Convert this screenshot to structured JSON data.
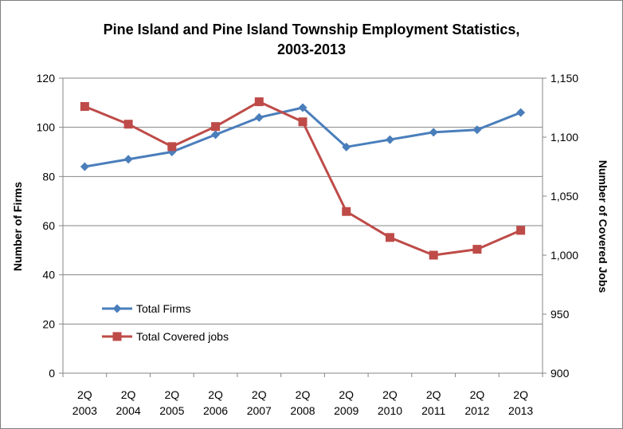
{
  "chart_data": {
    "type": "line",
    "title": "Pine Island and Pine Island Township Employment Statistics,",
    "title_line2": "2003-2013",
    "ylabel": "Number of Firms",
    "y2label": "Number of Covered Jobs",
    "categories": [
      {
        "top": "2Q",
        "bottom": "2003"
      },
      {
        "top": "2Q",
        "bottom": "2004"
      },
      {
        "top": "2Q",
        "bottom": "2005"
      },
      {
        "top": "2Q",
        "bottom": "2006"
      },
      {
        "top": "2Q",
        "bottom": "2007"
      },
      {
        "top": "2Q",
        "bottom": "2008"
      },
      {
        "top": "2Q",
        "bottom": "2009"
      },
      {
        "top": "2Q",
        "bottom": "2010"
      },
      {
        "top": "2Q",
        "bottom": "2011"
      },
      {
        "top": "2Q",
        "bottom": "2012"
      },
      {
        "top": "2Q",
        "bottom": "2013"
      }
    ],
    "ylim": [
      0,
      120
    ],
    "y_ticks": [
      "0",
      "20",
      "40",
      "60",
      "80",
      "100",
      "120"
    ],
    "y_tick_values": [
      0,
      20,
      40,
      60,
      80,
      100,
      120
    ],
    "y2lim": [
      900,
      1150
    ],
    "y2_ticks": [
      "900",
      "950",
      "1,000",
      "1,050",
      "1,100",
      "1,150"
    ],
    "y2_tick_values": [
      900,
      950,
      1000,
      1050,
      1100,
      1150
    ],
    "grid": true,
    "legend_position": "lower-left",
    "series": [
      {
        "name": "Total Firms",
        "axis": "left",
        "color": "#4a7ebb",
        "marker": "diamond",
        "values": [
          84,
          87,
          90,
          97,
          104,
          108,
          92,
          95,
          98,
          99,
          106
        ]
      },
      {
        "name": "Total Covered jobs",
        "axis": "right",
        "color": "#be4b48",
        "marker": "square",
        "values": [
          1126,
          1111,
          1092,
          1109,
          1130,
          1113,
          1037,
          1015,
          1000,
          1005,
          1021
        ]
      }
    ]
  }
}
